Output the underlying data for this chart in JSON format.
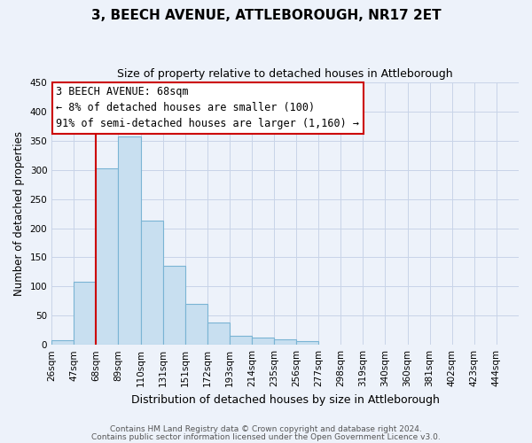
{
  "title": "3, BEECH AVENUE, ATTLEBOROUGH, NR17 2ET",
  "subtitle": "Size of property relative to detached houses in Attleborough",
  "xlabel": "Distribution of detached houses by size in Attleborough",
  "ylabel": "Number of detached properties",
  "footnote1": "Contains HM Land Registry data © Crown copyright and database right 2024.",
  "footnote2": "Contains public sector information licensed under the Open Government Licence v3.0.",
  "bin_labels": [
    "26sqm",
    "47sqm",
    "68sqm",
    "89sqm",
    "110sqm",
    "131sqm",
    "151sqm",
    "172sqm",
    "193sqm",
    "214sqm",
    "235sqm",
    "256sqm",
    "277sqm",
    "298sqm",
    "319sqm",
    "340sqm",
    "360sqm",
    "381sqm",
    "402sqm",
    "423sqm",
    "444sqm"
  ],
  "bar_values": [
    8,
    108,
    302,
    358,
    213,
    136,
    70,
    39,
    15,
    13,
    10,
    6,
    0,
    0,
    0,
    0,
    0,
    0,
    0,
    0,
    0
  ],
  "bar_color": "#c8dff0",
  "bar_edge_color": "#7ab4d4",
  "property_line_bin": 2,
  "annotation_title": "3 BEECH AVENUE: 68sqm",
  "annotation_line1": "← 8% of detached houses are smaller (100)",
  "annotation_line2": "91% of semi-detached houses are larger (1,160) →",
  "annotation_box_facecolor": "#ffffff",
  "annotation_box_edgecolor": "#cc0000",
  "property_line_color": "#cc0000",
  "ylim": [
    0,
    450
  ],
  "yticks": [
    0,
    50,
    100,
    150,
    200,
    250,
    300,
    350,
    400,
    450
  ],
  "grid_color": "#c8d4e8",
  "background_color": "#edf2fa",
  "title_fontsize": 11,
  "subtitle_fontsize": 9,
  "ylabel_fontsize": 8.5,
  "xlabel_fontsize": 9,
  "tick_fontsize": 7.5,
  "footnote_fontsize": 6.5,
  "annotation_fontsize": 8.5
}
